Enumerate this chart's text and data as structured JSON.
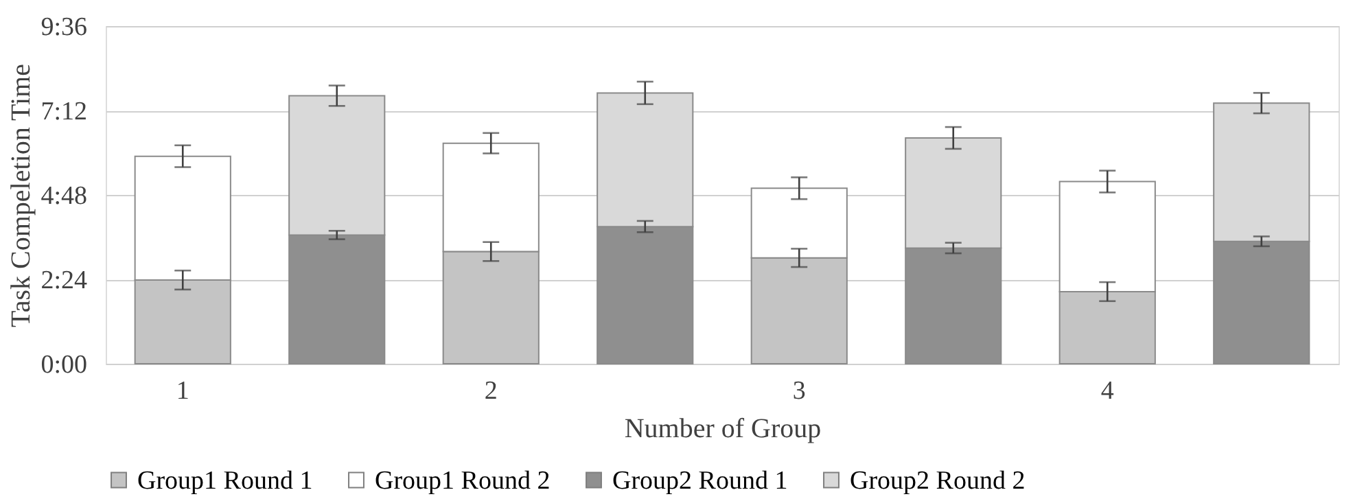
{
  "chart_data": {
    "type": "bar",
    "stacked": true,
    "xlabel": "Number of Group",
    "ylabel": "Task Compeletion Time",
    "categories": [
      "1",
      null,
      "2",
      null,
      "3",
      null,
      "4",
      null
    ],
    "series": [
      {
        "name": "Group1 Round 1",
        "color": "#c4c4c4",
        "values": [
          2.38,
          null,
          3.19,
          null,
          3.01,
          null,
          2.05,
          null
        ],
        "errors": [
          0.27,
          null,
          0.27,
          null,
          0.26,
          null,
          0.27,
          null
        ]
      },
      {
        "name": "Group1 Round 2",
        "color": "#ffffff",
        "values": [
          3.52,
          null,
          3.08,
          null,
          1.98,
          null,
          3.13,
          null
        ],
        "errors": [
          0.31,
          null,
          0.29,
          null,
          0.31,
          null,
          0.31,
          null
        ]
      },
      {
        "name": "Group2 Round 1",
        "color": "#8f8f8f",
        "values": [
          null,
          3.66,
          null,
          3.9,
          null,
          3.29,
          null,
          3.48
        ],
        "errors": [
          null,
          0.12,
          null,
          0.16,
          null,
          0.15,
          null,
          0.14
        ]
      },
      {
        "name": "Group2 Round 2",
        "color": "#d9d9d9",
        "values": [
          null,
          3.96,
          null,
          3.8,
          null,
          3.13,
          null,
          3.93
        ],
        "errors": [
          null,
          0.29,
          null,
          0.32,
          null,
          0.31,
          null,
          0.29
        ]
      }
    ],
    "ylim": [
      0,
      9.6
    ],
    "yticks": [
      {
        "value": 0,
        "label": "0:00"
      },
      {
        "value": 2.4,
        "label": "2:24"
      },
      {
        "value": 4.8,
        "label": "4:48"
      },
      {
        "value": 7.2,
        "label": "7:12"
      },
      {
        "value": 9.6,
        "label": "9:36"
      }
    ],
    "grid": "y",
    "legend": "bottom"
  }
}
